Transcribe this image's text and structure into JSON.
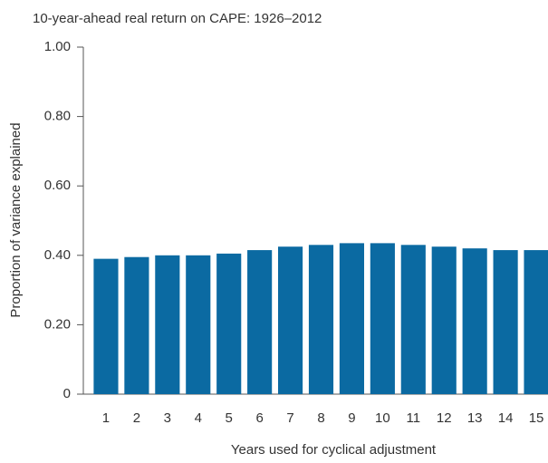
{
  "chart_data": {
    "type": "bar",
    "title": "10-year-ahead real return on CAPE: 1926–2012",
    "x_label": "Years used for cyclical adjustment",
    "y_label": "Proportion of variance explained",
    "categories": [
      "1",
      "2",
      "3",
      "4",
      "5",
      "6",
      "7",
      "8",
      "9",
      "10",
      "11",
      "12",
      "13",
      "14",
      "15"
    ],
    "values": [
      0.39,
      0.395,
      0.4,
      0.4,
      0.405,
      0.415,
      0.425,
      0.43,
      0.435,
      0.435,
      0.43,
      0.425,
      0.42,
      0.415,
      0.415
    ],
    "color": "#0b6aa2",
    "ylim": [
      0,
      1
    ],
    "yticks": [
      0,
      {
        "value": 0.2,
        "label": "0.20"
      },
      {
        "value": 0.4,
        "label": "0.40"
      },
      {
        "value": 0.6,
        "label": "0.60"
      },
      {
        "value": 0.8,
        "label": "0.80"
      },
      {
        "value": 1,
        "label": "1.00"
      }
    ],
    "grid": false
  }
}
